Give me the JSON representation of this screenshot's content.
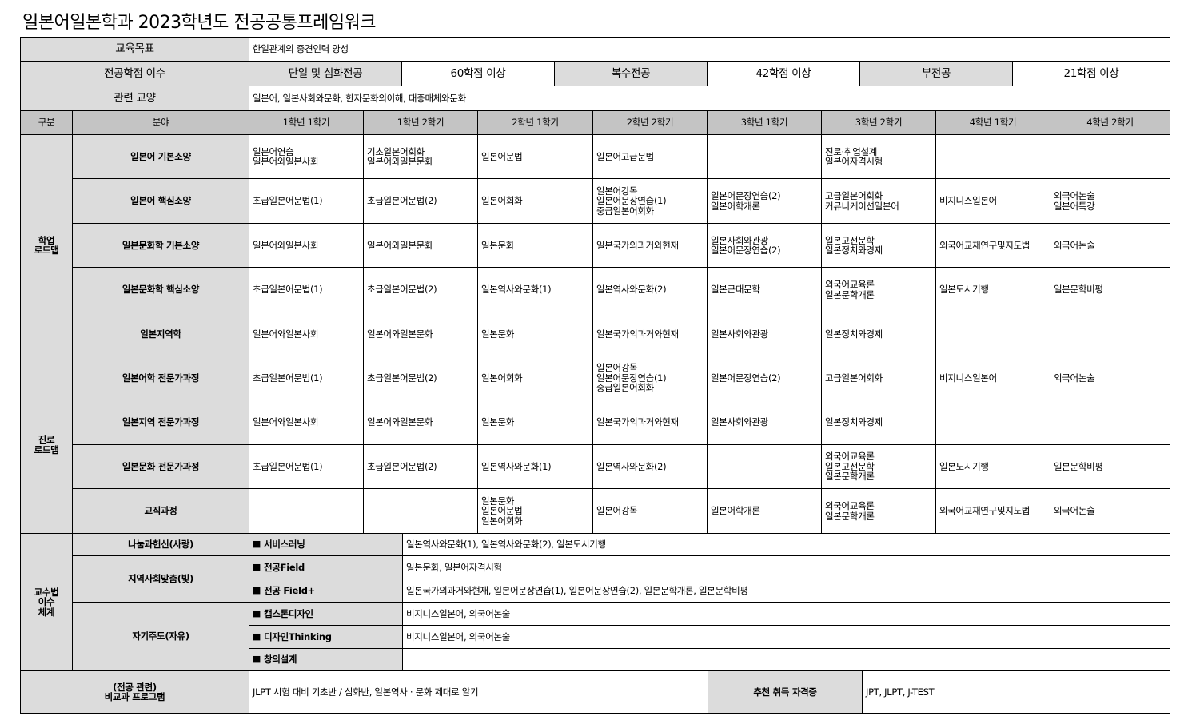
{
  "title": "일본어일본학과 2023학년도 전공공통프레임워크",
  "goal": {
    "label": "교육목표",
    "value": "한일관계의 중견인력 양성"
  },
  "credits": {
    "label": "전공학점 이수",
    "items": [
      {
        "label": "단일 및 심화전공",
        "value": "60학점 이상"
      },
      {
        "label": "복수전공",
        "value": "42학점 이상"
      },
      {
        "label": "부전공",
        "value": "21학점 이상"
      }
    ]
  },
  "liberal": {
    "label": "관련 교양",
    "value": "일본어, 일본사회와문화, 한자문화의이해, 대중매체와문화"
  },
  "columns": [
    "구분",
    "분야",
    "1학년 1학기",
    "1학년 2학기",
    "2학년 1학기",
    "2학년 2학기",
    "3학년 1학기",
    "3학년 2학기",
    "4학년 1학기",
    "4학년 2학기"
  ],
  "roadmaps": [
    {
      "group": "학업\n로드맵",
      "rows": [
        {
          "field": "일본어 기본소양",
          "courses": [
            "일본어연습\n일본어와일본사회",
            "기초일본어회화\n일본어와일본문화",
            "일본어문법",
            "일본어고급문법",
            "",
            "진로·취업설계\n일본어자격시험",
            "",
            ""
          ]
        },
        {
          "field": "일본어 핵심소양",
          "courses": [
            "초급일본어문법(1)",
            "초급일본어문법(2)",
            "일본어회화",
            "일본어강독\n일본어문장연습(1)\n중급일본어회화",
            "일본어문장연습(2)\n일본어학개론",
            "고급일본어회화\n커뮤니케이션일본어",
            "비지니스일본어",
            "외국어논술\n일본어특강"
          ]
        },
        {
          "field": "일본문화학 기본소양",
          "courses": [
            "일본어와일본사회",
            "일본어와일본문화",
            "일본문화",
            "일본국가의과거와현재",
            "일본사회와관광\n일본어문장연습(2)",
            "일본고전문학\n일본정치와경제",
            "외국어교재연구및지도법",
            "외국어논술"
          ]
        },
        {
          "field": "일본문화학 핵심소양",
          "courses": [
            "초급일본어문법(1)",
            "초급일본어문법(2)",
            "일본역사와문화(1)",
            "일본역사와문화(2)",
            "일본근대문학",
            "외국어교육론\n일본문학개론",
            "일본도시기행",
            "일본문학비평"
          ]
        },
        {
          "field": "일본지역학",
          "courses": [
            "일본어와일본사회",
            "일본어와일본문화",
            "일본문화",
            "일본국가의과거와현재",
            "일본사회와관광",
            "일본정치와경제",
            "",
            ""
          ]
        }
      ]
    },
    {
      "group": "진로\n로드맵",
      "rows": [
        {
          "field": "일본어학 전문가과정",
          "courses": [
            "초급일본어문법(1)",
            "초급일본어문법(2)",
            "일본어회화",
            "일본어강독\n일본어문장연습(1)\n중급일본어회화",
            "일본어문장연습(2)",
            "고급일본어회화",
            "비지니스일본어",
            "외국어논술"
          ]
        },
        {
          "field": "일본지역 전문가과정",
          "courses": [
            "일본어와일본사회",
            "일본어와일본문화",
            "일본문화",
            "일본국가의과거와현재",
            "일본사회와관광",
            "일본정치와경제",
            "",
            ""
          ]
        },
        {
          "field": "일본문화 전문가과정",
          "courses": [
            "초급일본어문법(1)",
            "초급일본어문법(2)",
            "일본역사와문화(1)",
            "일본역사와문화(2)",
            "",
            "외국어교육론\n일본고전문학\n일본문학개론",
            "일본도시기행",
            "일본문학비평"
          ]
        },
        {
          "field": "교직과정",
          "courses": [
            "",
            "",
            "일본문화\n일본어문법\n일본어회화",
            "일본어강독",
            "일본어학개론",
            "외국어교육론\n일본문학개론",
            "외국어교재연구및지도법",
            "외국어논술"
          ]
        }
      ]
    }
  ],
  "teaching": {
    "group": "교수법\n이수\n체계",
    "categories": [
      {
        "name": "나눔과헌신(사랑)",
        "items": [
          {
            "label": "서비스러닝",
            "courses": "일본역사와문화(1), 일본역사와문화(2), 일본도시기행"
          }
        ]
      },
      {
        "name": "지역사회맞춤(빛)",
        "items": [
          {
            "label": "전공Field",
            "courses": "일본문화, 일본어자격시험"
          },
          {
            "label": "전공 Field+",
            "courses": "일본국가의과거와현재, 일본어문장연습(1), 일본어문장연습(2), 일본문학개론, 일본문학비평"
          }
        ]
      },
      {
        "name": "자기주도(자유)",
        "items": [
          {
            "label": "캡스톤디자인",
            "courses": "비지니스일본어, 외국어논술"
          },
          {
            "label": "디자인Thinking",
            "courses": "비지니스일본어, 외국어논술"
          },
          {
            "label": "창의설계",
            "courses": ""
          }
        ]
      }
    ]
  },
  "extra": {
    "label": "(전공 관련)\n비교과 프로그램",
    "value": "JLPT 시험 대비 기초반 / 심화반, 일본역사 · 문화 제대로 알기",
    "cert_label": "추천 취득 자격증",
    "cert_value": "JPT, JLPT, J-TEST"
  }
}
